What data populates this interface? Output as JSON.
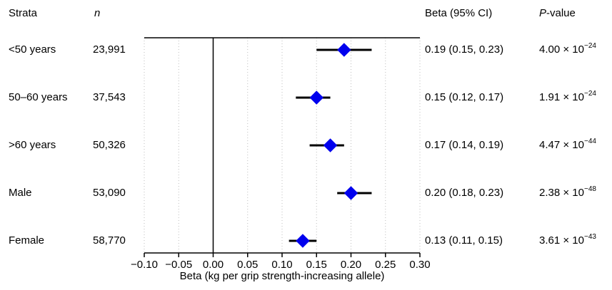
{
  "headers": {
    "strata": "Strata",
    "n": "n",
    "beta": "Beta (95% CI)",
    "p_prefix": "P",
    "p_suffix": "-value"
  },
  "chart_data": {
    "type": "forest",
    "xlabel": "Beta (kg per grip strength-increasing allele)",
    "xlim": [
      -0.1,
      0.3
    ],
    "xticks": [
      -0.1,
      -0.05,
      0.0,
      0.05,
      0.1,
      0.15,
      0.2,
      0.25,
      0.3
    ],
    "xtick_labels": [
      "−0.10",
      "−0.05",
      "0.00",
      "0.05",
      "0.10",
      "0.15",
      "0.20",
      "0.25",
      "0.30"
    ],
    "reference_line": 0,
    "marker_color": "#0000ee",
    "rows": [
      {
        "stratum": "<50 years",
        "n": "23,991",
        "beta": 0.19,
        "lower": 0.15,
        "upper": 0.23,
        "ci_text": "0.19 (0.15, 0.23)",
        "p_mantissa": "4.00",
        "p_exponent": "−24"
      },
      {
        "stratum": "50–60 years",
        "n": "37,543",
        "beta": 0.15,
        "lower": 0.12,
        "upper": 0.17,
        "ci_text": "0.15 (0.12, 0.17)",
        "p_mantissa": "1.91",
        "p_exponent": "−24"
      },
      {
        "stratum": ">60 years",
        "n": "50,326",
        "beta": 0.17,
        "lower": 0.14,
        "upper": 0.19,
        "ci_text": "0.17 (0.14, 0.19)",
        "p_mantissa": "4.47",
        "p_exponent": "−44"
      },
      {
        "stratum": "Male",
        "n": "53,090",
        "beta": 0.2,
        "lower": 0.18,
        "upper": 0.23,
        "ci_text": "0.20 (0.18, 0.23)",
        "p_mantissa": "2.38",
        "p_exponent": "−48"
      },
      {
        "stratum": "Female",
        "n": "58,770",
        "beta": 0.13,
        "lower": 0.11,
        "upper": 0.15,
        "ci_text": "0.13 (0.11, 0.15)",
        "p_mantissa": "3.61",
        "p_exponent": "−43"
      }
    ]
  }
}
